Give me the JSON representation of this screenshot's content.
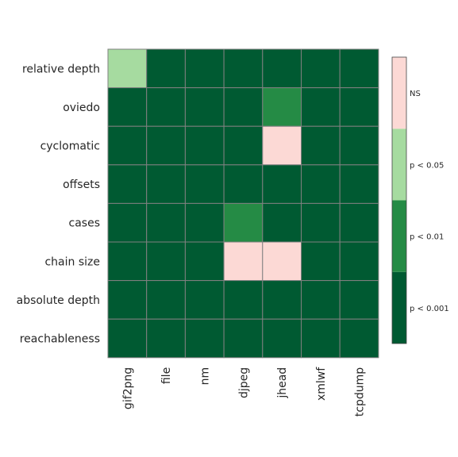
{
  "chart_data": {
    "type": "heatmap",
    "title": "",
    "rows": [
      "relative depth",
      "oviedo",
      "cyclomatic",
      "offsets",
      "cases",
      "chain size",
      "absolute depth",
      "reachableness"
    ],
    "columns": [
      "gif2png",
      "file",
      "nm",
      "djpeg",
      "jhead",
      "xmlwf",
      "tcpdump"
    ],
    "values": [
      [
        "p < 0.05",
        "p < 0.001",
        "p < 0.001",
        "p < 0.001",
        "p < 0.001",
        "p < 0.001",
        "p < 0.001"
      ],
      [
        "p < 0.001",
        "p < 0.001",
        "p < 0.001",
        "p < 0.001",
        "p < 0.01",
        "p < 0.001",
        "p < 0.001"
      ],
      [
        "p < 0.001",
        "p < 0.001",
        "p < 0.001",
        "p < 0.001",
        "NS",
        "p < 0.001",
        "p < 0.001"
      ],
      [
        "p < 0.001",
        "p < 0.001",
        "p < 0.001",
        "p < 0.001",
        "p < 0.001",
        "p < 0.001",
        "p < 0.001"
      ],
      [
        "p < 0.001",
        "p < 0.001",
        "p < 0.001",
        "p < 0.01",
        "p < 0.001",
        "p < 0.001",
        "p < 0.001"
      ],
      [
        "p < 0.001",
        "p < 0.001",
        "p < 0.001",
        "NS",
        "NS",
        "p < 0.001",
        "p < 0.001"
      ],
      [
        "p < 0.001",
        "p < 0.001",
        "p < 0.001",
        "p < 0.001",
        "p < 0.001",
        "p < 0.001",
        "p < 0.001"
      ],
      [
        "p < 0.001",
        "p < 0.001",
        "p < 0.001",
        "p < 0.001",
        "p < 0.001",
        "p < 0.001",
        "p < 0.001"
      ]
    ],
    "colorbar": {
      "categories": [
        "p < 0.001",
        "p < 0.01",
        "p < 0.05",
        "NS"
      ],
      "colors": {
        "NS": "#fcd9d5",
        "p < 0.05": "#a6dba0",
        "p < 0.01": "#258b45",
        "p < 0.001": "#005a32"
      },
      "placement": "right"
    },
    "grid_color": "#808080"
  }
}
